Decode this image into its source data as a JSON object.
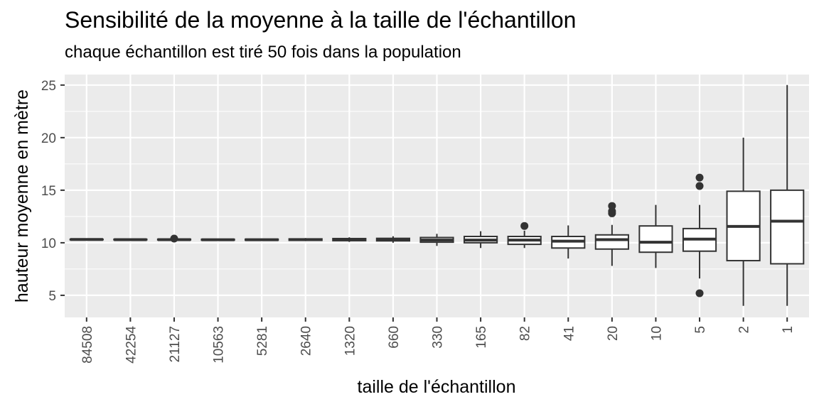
{
  "chart_data": {
    "type": "boxplot",
    "title": "Sensibilité de la moyenne à la taille de l'échantillon",
    "subtitle": "chaque échantillon est tiré 50 fois dans la population",
    "xlabel": "taille de l'échantillon",
    "ylabel": "hauteur moyenne en mètre",
    "ylim": [
      2.9,
      26.0
    ],
    "yticks": [
      5,
      10,
      15,
      20,
      25
    ],
    "grid": true,
    "categories": [
      "84508",
      "42254",
      "21127",
      "10563",
      "5281",
      "2640",
      "1320",
      "660",
      "330",
      "165",
      "82",
      "41",
      "20",
      "10",
      "5",
      "2",
      "1"
    ],
    "boxes": [
      {
        "min": 10.26,
        "q1": 10.29,
        "median": 10.31,
        "q3": 10.33,
        "max": 10.35,
        "outliers": []
      },
      {
        "min": 10.25,
        "q1": 10.28,
        "median": 10.3,
        "q3": 10.33,
        "max": 10.36,
        "outliers": []
      },
      {
        "min": 10.22,
        "q1": 10.27,
        "median": 10.3,
        "q3": 10.34,
        "max": 10.38,
        "outliers": [
          10.4
        ]
      },
      {
        "min": 10.2,
        "q1": 10.25,
        "median": 10.29,
        "q3": 10.33,
        "max": 10.38,
        "outliers": []
      },
      {
        "min": 10.18,
        "q1": 10.24,
        "median": 10.29,
        "q3": 10.34,
        "max": 10.4,
        "outliers": []
      },
      {
        "min": 10.15,
        "q1": 10.23,
        "median": 10.3,
        "q3": 10.37,
        "max": 10.45,
        "outliers": []
      },
      {
        "min": 10.08,
        "q1": 10.2,
        "median": 10.29,
        "q3": 10.4,
        "max": 10.52,
        "outliers": []
      },
      {
        "min": 10.0,
        "q1": 10.18,
        "median": 10.29,
        "q3": 10.42,
        "max": 10.62,
        "outliers": []
      },
      {
        "min": 9.7,
        "q1": 10.05,
        "median": 10.25,
        "q3": 10.5,
        "max": 10.85,
        "outliers": []
      },
      {
        "min": 9.5,
        "q1": 10.0,
        "median": 10.25,
        "q3": 10.6,
        "max": 11.1,
        "outliers": []
      },
      {
        "min": 9.5,
        "q1": 9.85,
        "median": 10.25,
        "q3": 10.6,
        "max": 11.15,
        "outliers": [
          11.6
        ]
      },
      {
        "min": 8.5,
        "q1": 9.5,
        "median": 10.15,
        "q3": 10.6,
        "max": 11.65,
        "outliers": []
      },
      {
        "min": 7.8,
        "q1": 9.4,
        "median": 10.3,
        "q3": 10.75,
        "max": 11.7,
        "outliers": [
          12.8,
          13.0,
          13.5
        ]
      },
      {
        "min": 7.6,
        "q1": 9.1,
        "median": 10.05,
        "q3": 11.6,
        "max": 13.6,
        "outliers": []
      },
      {
        "min": 6.6,
        "q1": 9.2,
        "median": 10.35,
        "q3": 11.35,
        "max": 13.6,
        "outliers": [
          5.2,
          15.4,
          16.2
        ]
      },
      {
        "min": 4.0,
        "q1": 8.3,
        "median": 11.55,
        "q3": 14.9,
        "max": 20.0,
        "outliers": []
      },
      {
        "min": 4.0,
        "q1": 8.0,
        "median": 12.05,
        "q3": 15.0,
        "max": 25.0,
        "outliers": []
      }
    ]
  }
}
